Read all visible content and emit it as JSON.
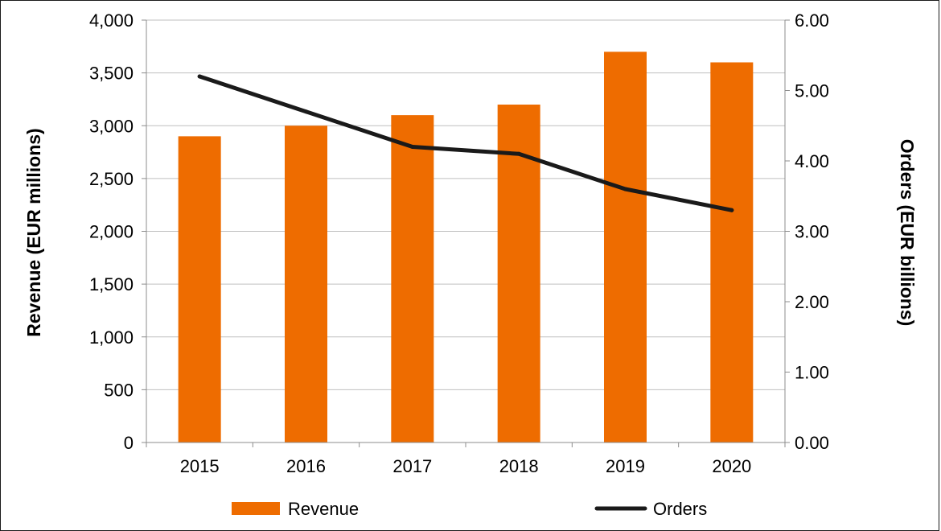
{
  "chart_data": {
    "type": "bar",
    "categories": [
      "2015",
      "2016",
      "2017",
      "2018",
      "2019",
      "2020"
    ],
    "series": [
      {
        "name": "Revenue",
        "type": "bar",
        "axis": "left",
        "color": "#EE6C00",
        "values": [
          2900,
          3000,
          3100,
          3200,
          3700,
          3600
        ]
      },
      {
        "name": "Orders",
        "type": "line",
        "axis": "right",
        "color": "#1A1A1A",
        "values": [
          5.2,
          4.7,
          4.2,
          4.1,
          3.6,
          3.3
        ]
      }
    ],
    "ylabel": "Revenue (EUR millions)",
    "y2label": "Orders (EUR billions)",
    "ylim": [
      0,
      4000
    ],
    "y2lim": [
      0,
      6
    ],
    "yticks": [
      "0",
      "500",
      "1,000",
      "1,500",
      "2,000",
      "2,500",
      "3,000",
      "3,500",
      "4,000"
    ],
    "y2ticks": [
      "0.00",
      "1.00",
      "2.00",
      "3.00",
      "4.00",
      "5.00",
      "6.00"
    ],
    "grid": true,
    "legend_position": "bottom"
  }
}
